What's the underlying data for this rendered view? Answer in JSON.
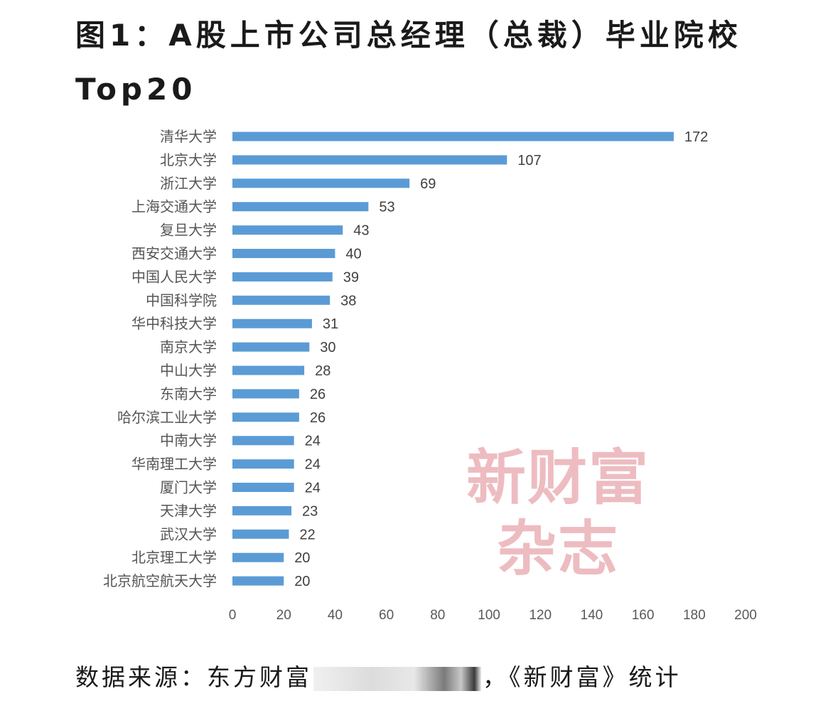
{
  "title": "图1：A股上市公司总经理（总裁）毕业院校Top20",
  "watermark": {
    "line1": "新财富",
    "line2": "杂志"
  },
  "footer": {
    "source_prefix": "数据来源：东方财富",
    "source_suffix": "，《新财富》统计"
  },
  "chart_data": {
    "type": "bar",
    "orientation": "horizontal",
    "title": "图1：A股上市公司总经理（总裁）毕业院校Top20",
    "xlabel": "",
    "ylabel": "",
    "xlim": [
      0,
      200
    ],
    "x_ticks": [
      0,
      20,
      40,
      60,
      80,
      100,
      120,
      140,
      160,
      180,
      200
    ],
    "grid": false,
    "legend": "none",
    "bar_color": "#5b9bd5",
    "categories": [
      "清华大学",
      "北京大学",
      "浙江大学",
      "上海交通大学",
      "复旦大学",
      "西安交通大学",
      "中国人民大学",
      "中国科学院",
      "华中科技大学",
      "南京大学",
      "中山大学",
      "东南大学",
      "哈尔滨工业大学",
      "中南大学",
      "华南理工大学",
      "厦门大学",
      "天津大学",
      "武汉大学",
      "北京理工大学",
      "北京航空航天大学"
    ],
    "values": [
      172,
      107,
      69,
      53,
      43,
      40,
      39,
      38,
      31,
      30,
      28,
      26,
      26,
      24,
      24,
      24,
      23,
      22,
      20,
      20
    ]
  }
}
